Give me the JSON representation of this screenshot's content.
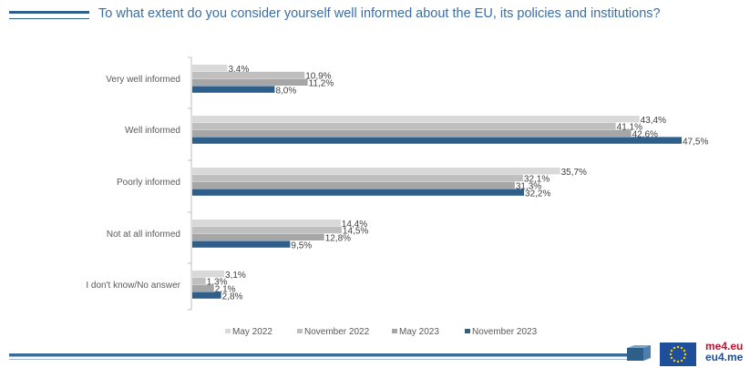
{
  "header": {
    "title": "To what extent do you consider yourself well informed  about the EU, its policies and institutions?"
  },
  "logos": {
    "brand_line1": "me4.eu",
    "brand_line2": "eu4.me"
  },
  "colors": {
    "series": [
      "#d9d9d9",
      "#bfbfbf",
      "#a6a6a6",
      "#2e5f8a"
    ],
    "title": "#3a6ea5",
    "axis": "#bfbfbf"
  },
  "chart_data": {
    "type": "bar",
    "orientation": "horizontal",
    "title": "To what extent do you consider yourself well informed  about the EU, its policies and institutions?",
    "xlabel": "",
    "ylabel": "",
    "xlim": [
      0,
      50
    ],
    "grid": false,
    "legend_position": "bottom",
    "categories": [
      "Very well informed",
      "Well informed",
      "Poorly informed",
      "Not at all informed",
      "I don't know/No answer"
    ],
    "series": [
      {
        "name": "May 2022",
        "values": [
          3.4,
          43.4,
          35.7,
          14.4,
          3.1
        ],
        "labels": [
          "3,4%",
          "43,4%",
          "35,7%",
          "14,4%",
          "3,1%"
        ]
      },
      {
        "name": "November 2022",
        "values": [
          10.9,
          41.1,
          32.1,
          14.5,
          1.3
        ],
        "labels": [
          "10,9%",
          "41,1%",
          "32,1%",
          "14,5%",
          "1,3%"
        ]
      },
      {
        "name": "May 2023",
        "values": [
          11.2,
          42.6,
          31.3,
          12.8,
          2.1
        ],
        "labels": [
          "11,2%",
          "42,6%",
          "31,3%",
          "12,8%",
          "2,1%"
        ]
      },
      {
        "name": "November 2023",
        "values": [
          8.0,
          47.5,
          32.2,
          9.5,
          2.8
        ],
        "labels": [
          "8,0%",
          "47,5%",
          "32,2%",
          "9,5%",
          "2,8%"
        ]
      }
    ]
  }
}
